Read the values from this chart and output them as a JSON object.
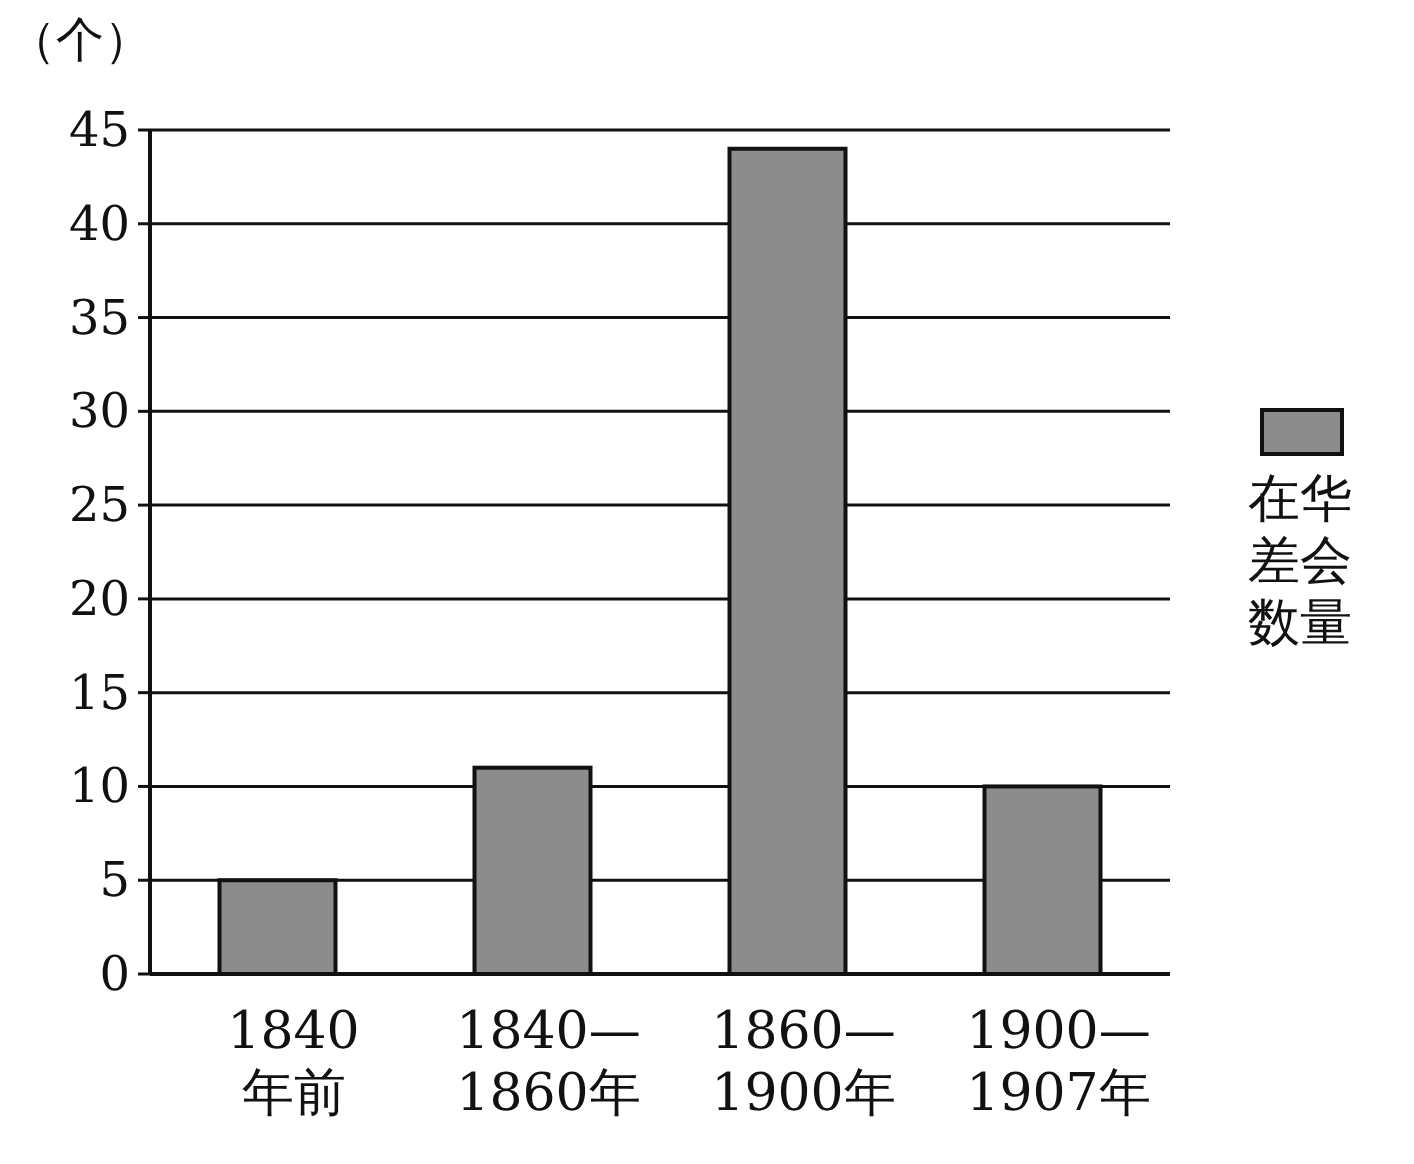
{
  "chart_data": {
    "type": "bar",
    "ylabel": "（个）",
    "categories": [
      "1840\n年前",
      "1840—\n1860年",
      "1860—\n1900年",
      "1900—\n1907年"
    ],
    "series": [
      {
        "name": "在华差会数量",
        "color": "#8c8c8c",
        "values": [
          5,
          11,
          44,
          10
        ]
      }
    ],
    "ylim": [
      0,
      45
    ],
    "yticks": [
      0,
      5,
      10,
      15,
      20,
      25,
      30,
      35,
      40,
      45
    ],
    "grid": "y",
    "legend": "right"
  }
}
